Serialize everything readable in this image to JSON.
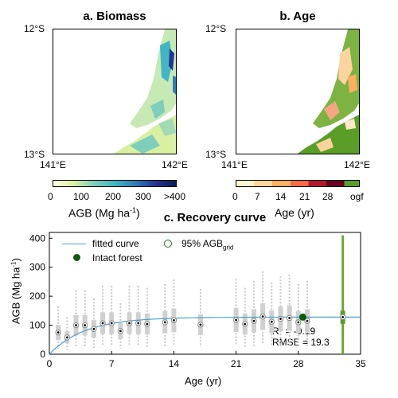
{
  "panel_a": {
    "title": "a. Biomass",
    "lat_top": "12°S",
    "lat_bottom": "13°S",
    "lon_left": "141°E",
    "lon_right": "142°E",
    "colorbar_ticks": [
      "0",
      "100",
      "200",
      "300",
      ">400"
    ],
    "colorbar_label": "AGB (Mg ha",
    "colorbar_label_sup": "-1",
    "colorbar_label_end": ")",
    "colors": [
      "#ffffe0",
      "#d9f0a3",
      "#7fcdbb",
      "#41b6c4",
      "#2c7fb8",
      "#253494",
      "#081d58"
    ]
  },
  "panel_b": {
    "title": "b. Age",
    "lat_top": "12°S",
    "lat_bottom": "13°S",
    "lon_left": "141°E",
    "lon_right": "142°E",
    "colorbar_ticks": [
      "0",
      "7",
      "14",
      "21",
      "28",
      "ogf"
    ],
    "colorbar_label": "Age (yr)",
    "colors": [
      "#fff5d0",
      "#fdd49e",
      "#fdae61",
      "#f46d43",
      "#b2182b",
      "#67001f"
    ],
    "ogf_color": "#5a9e28"
  },
  "panel_c": {
    "title": "c. Recovery curve",
    "legend": {
      "fitted": "fitted curve",
      "pct": "95% AGB",
      "pct_sub": "grid",
      "intact": "Intact forest"
    },
    "stats": {
      "r2_label": "R",
      "r2_sup": "2",
      "r2_value": " = -0.19",
      "rmse": "RMSE = 19.3"
    }
  },
  "chart_data": {
    "type": "scatter",
    "xlabel": "Age (yr)",
    "ylabel": "AGB (Mg ha",
    "ylabel_sup": "-1",
    "ylabel_end": ")",
    "xlim": [
      0,
      35
    ],
    "ylim": [
      0,
      420
    ],
    "xticks": [
      0,
      7,
      14,
      21,
      28,
      35
    ],
    "yticks": [
      0,
      100,
      200,
      300,
      400
    ],
    "box_medians": [
      {
        "x": 1,
        "y": 75
      },
      {
        "x": 2,
        "y": 58
      },
      {
        "x": 3,
        "y": 100
      },
      {
        "x": 4,
        "y": 100
      },
      {
        "x": 5,
        "y": 87
      },
      {
        "x": 6,
        "y": 107
      },
      {
        "x": 7,
        "y": 107
      },
      {
        "x": 8,
        "y": 80
      },
      {
        "x": 9,
        "y": 107
      },
      {
        "x": 10,
        "y": 107
      },
      {
        "x": 11,
        "y": 104
      },
      {
        "x": 13,
        "y": 110
      },
      {
        "x": 14,
        "y": 117
      },
      {
        "x": 17,
        "y": 102
      },
      {
        "x": 21,
        "y": 118
      },
      {
        "x": 22,
        "y": 104
      },
      {
        "x": 23,
        "y": 115
      },
      {
        "x": 24,
        "y": 130
      },
      {
        "x": 25,
        "y": 112
      },
      {
        "x": 26,
        "y": 122
      },
      {
        "x": 27,
        "y": 125
      },
      {
        "x": 28,
        "y": 110
      },
      {
        "x": 29,
        "y": 115
      },
      {
        "x": 33,
        "y": 128
      }
    ],
    "fitted_curve": {
      "asymptote": 128,
      "rate": 0.25
    },
    "intact_forest": {
      "x": 28.5,
      "y": 128
    },
    "ogf_x": 33,
    "ogf_whisker": [
      0,
      410
    ]
  }
}
